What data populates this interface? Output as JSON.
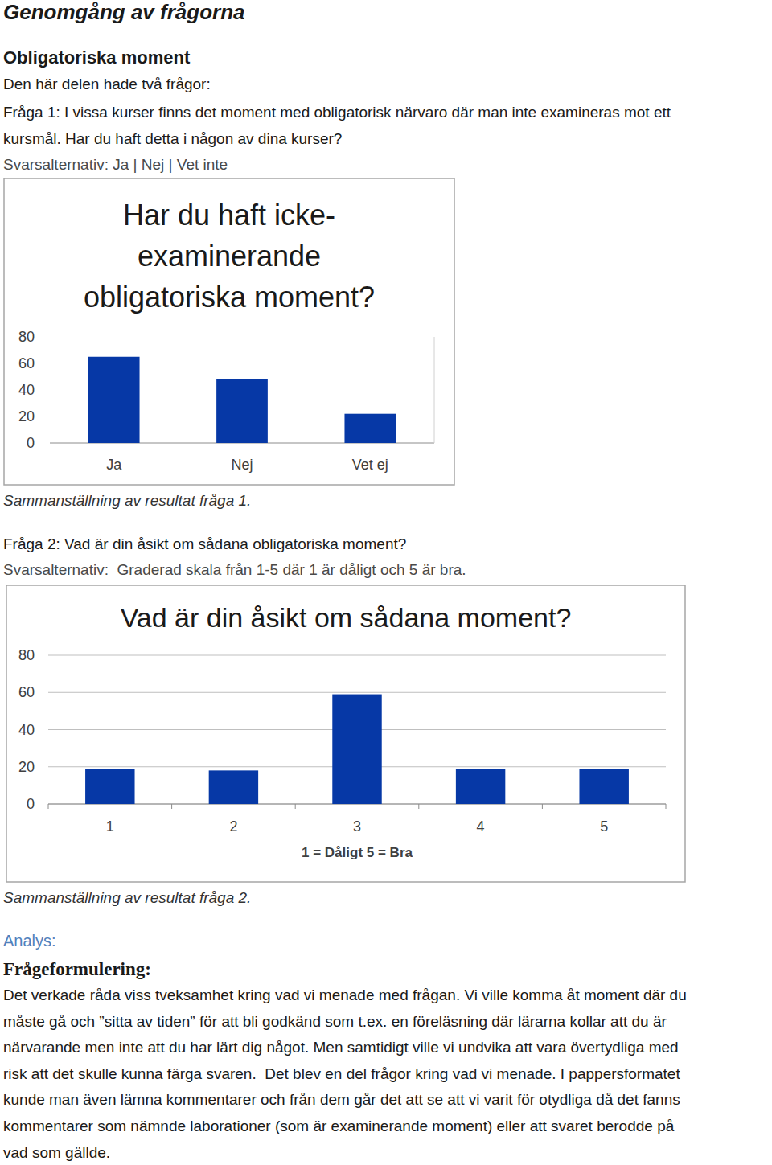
{
  "heading": "Genomgång av frågorna",
  "section": "Obligatoriska moment",
  "intro": "Den här delen hade två frågor:",
  "question_1_lines": [
    "Fråga 1: I vissa kurser finns det moment med obligatorisk närvaro där man inte examineras mot ett",
    "kursmål. Har du haft detta i någon av dina kurser?"
  ],
  "question_1_options": "Svarsalternativ: Ja | Nej | Vet inte",
  "caption_1": "Sammanställning av resultat fråga 1.",
  "question_2_lines": [
    "Fråga 2: Vad är din åsikt om sådana obligatoriska moment?"
  ],
  "question_2_options": "Svarsalternativ:  Graderad skala från 1-5 där 1 är dåligt och 5 är bra.",
  "caption_2": "Sammanställning av resultat fråga 2.",
  "analysis_label": "Analys:",
  "subheading": "Frågeformulering:",
  "paragraph_lines": [
    "Det verkade råda viss tveksamhet kring vad vi menade med frågan. Vi ville komma åt moment där du",
    "måste gå och ”sitta av tiden” för att bli godkänd som t.ex. en föreläsning där lärarna kollar att du är",
    "närvarande men inte att du har lärt dig något. Men samtidigt ville vi undvika att vara övertydliga med",
    "risk att det skulle kunna färga svaren.  Det blev en del frågor kring vad vi menade. I pappersformatet",
    "kunde man även lämna kommentarer och från dem går det att se att vi varit för otydliga då det fanns",
    "kommentarer som nämnde laborationer (som är examinerande moment) eller att svaret berodde på",
    "vad som gällde."
  ],
  "chart_data": [
    {
      "type": "bar",
      "title": "Har du haft icke-examinerande obligatoriska moment?",
      "categories": [
        "Ja",
        "Nej",
        "Vet ej"
      ],
      "values": [
        65,
        48,
        22
      ],
      "color": "#0638a6",
      "ylim": [
        0,
        80
      ],
      "yticks": [
        0,
        20,
        40,
        60,
        80
      ],
      "grid": false
    },
    {
      "type": "bar",
      "title": "Vad är din åsikt om sådana moment?",
      "xlabel": "1 = Dåligt 5 = Bra",
      "categories": [
        "1",
        "2",
        "3",
        "4",
        "5"
      ],
      "values": [
        19,
        18,
        59,
        19,
        19
      ],
      "color": "#0638a6",
      "ylim": [
        0,
        80
      ],
      "yticks": [
        0,
        20,
        40,
        60,
        80
      ],
      "grid": true
    }
  ]
}
